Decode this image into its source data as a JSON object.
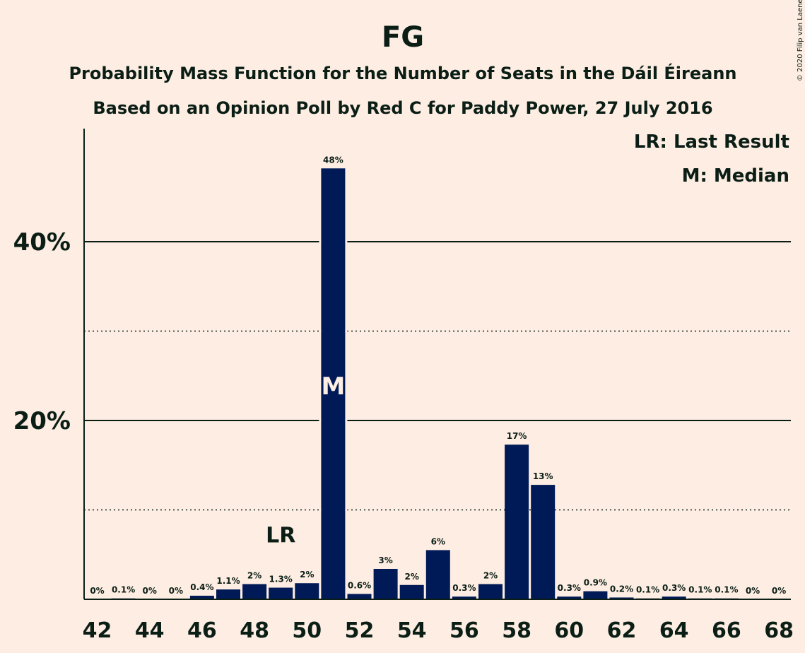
{
  "chart_data": {
    "type": "bar",
    "title": "FG",
    "subtitle": "Probability Mass Function for the Number of Seats in the Dáil Éireann",
    "subtitle2": "Based on an Opinion Poll by Red C for Paddy Power, 27 July 2016",
    "copyright": "© 2020 Filip van Laenen",
    "legend": {
      "last_result": "LR: Last Result",
      "median": "M: Median",
      "placement": "top-right"
    },
    "ylim": [
      0,
      52
    ],
    "yticks": [
      {
        "value": 20,
        "label": "20%"
      },
      {
        "value": 40,
        "label": "40%"
      }
    ],
    "grid_minor": [
      10,
      30
    ],
    "x_tick_labels": [
      "42",
      "44",
      "46",
      "48",
      "50",
      "52",
      "54",
      "56",
      "58",
      "60",
      "62",
      "64",
      "66",
      "68"
    ],
    "categories": [
      42,
      43,
      44,
      45,
      46,
      47,
      48,
      49,
      50,
      51,
      52,
      53,
      54,
      55,
      56,
      57,
      58,
      59,
      60,
      61,
      62,
      63,
      64,
      65,
      66,
      67,
      68
    ],
    "values": [
      0,
      0.1,
      0,
      0,
      0.4,
      1.1,
      1.7,
      1.3,
      1.8,
      48.2,
      0.6,
      3.4,
      1.6,
      5.5,
      0.3,
      1.7,
      17.3,
      12.8,
      0.3,
      0.9,
      0.2,
      0.1,
      0.3,
      0.1,
      0.1,
      0,
      0
    ],
    "value_labels": [
      "0%",
      "0.1%",
      "0%",
      "0%",
      "0.4%",
      "1.1%",
      "2%",
      "1.3%",
      "2%",
      "48%",
      "0.6%",
      "3%",
      "2%",
      "6%",
      "0.3%",
      "2%",
      "17%",
      "13%",
      "0.3%",
      "0.9%",
      "0.2%",
      "0.1%",
      "0.3%",
      "0.1%",
      "0.1%",
      "0%",
      "0%"
    ],
    "last_result": {
      "seat": 49,
      "label": "LR"
    },
    "median": {
      "seat": 51,
      "label": "M"
    },
    "bar_color": "#001A57",
    "background_color": "#FDEDE2"
  }
}
